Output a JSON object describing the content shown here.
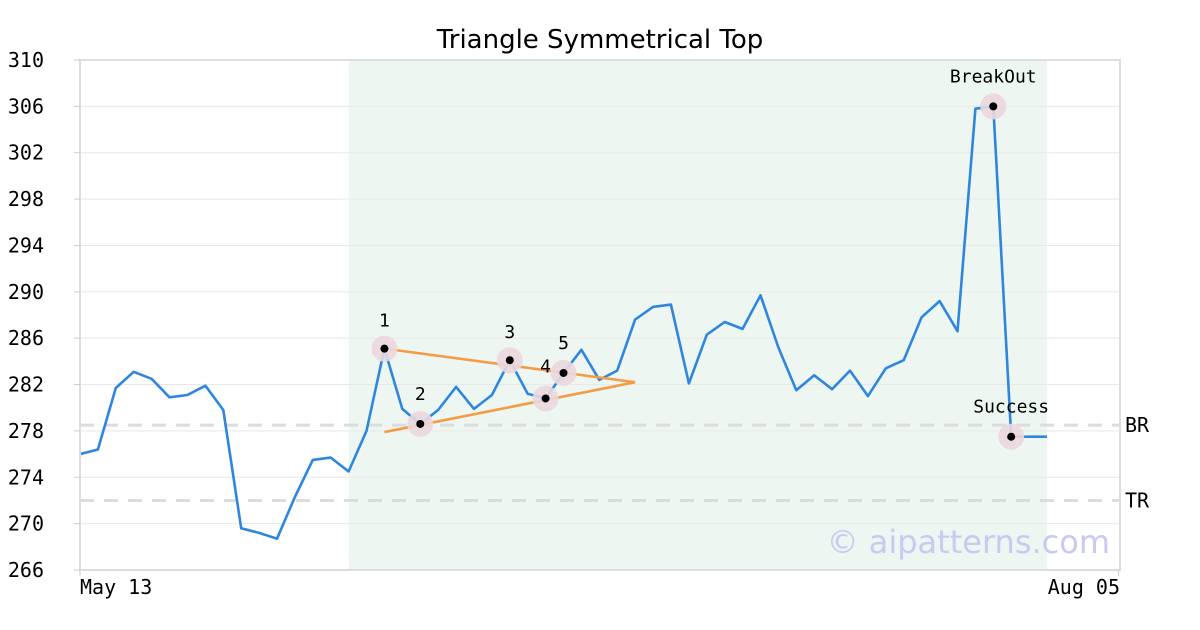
{
  "chart_data": {
    "type": "line",
    "title": "Triangle Symmetrical Top",
    "ylim": [
      266,
      310
    ],
    "yticks": [
      266,
      270,
      274,
      278,
      282,
      286,
      290,
      294,
      298,
      302,
      306,
      310
    ],
    "x_tick_labels": [
      {
        "index": 0,
        "label": "May 13"
      },
      {
        "index": 58,
        "label": "Aug 05"
      }
    ],
    "grid": "horizontal",
    "series": [
      {
        "color": "#2e86de",
        "values": [
          276.0,
          276.4,
          281.7,
          283.1,
          282.5,
          280.9,
          281.1,
          281.9,
          279.8,
          269.6,
          269.2,
          268.7,
          272.3,
          275.5,
          275.7,
          274.5,
          278.0,
          285.1,
          279.9,
          278.6,
          279.8,
          281.8,
          279.9,
          281.1,
          284.1,
          281.2,
          280.8,
          283.0,
          285.0,
          282.4,
          283.2,
          287.6,
          288.7,
          288.9,
          282.1,
          286.3,
          287.4,
          286.8,
          289.7,
          285.2,
          281.5,
          282.8,
          281.6,
          283.2,
          281.0,
          283.4,
          284.1,
          287.8,
          289.2,
          286.6,
          305.8,
          306.0,
          277.5,
          277.5,
          277.5
        ]
      }
    ],
    "pattern_region": {
      "from_index": 15,
      "to_index": 54,
      "color": "#eef6f2"
    },
    "pattern_points": [
      {
        "label": "1",
        "index": 17,
        "value": 285.1
      },
      {
        "label": "2",
        "index": 19,
        "value": 278.6
      },
      {
        "label": "3",
        "index": 24,
        "value": 284.1
      },
      {
        "label": "4",
        "index": 26,
        "value": 280.8
      },
      {
        "label": "5",
        "index": 27,
        "value": 283.0
      },
      {
        "label": "BreakOut",
        "index": 51,
        "value": 306.0
      },
      {
        "label": "Success",
        "index": 52,
        "value": 277.5
      }
    ],
    "triangle_lines": [
      {
        "from_index": 17,
        "from_value": 285.1,
        "to_index": 31,
        "to_value": 282.2
      },
      {
        "from_index": 17,
        "from_value": 277.9,
        "to_index": 31,
        "to_value": 282.2
      }
    ],
    "triangle_color": "#f39c45",
    "reference_lines": [
      {
        "label": "BR",
        "value": 278.5
      },
      {
        "label": "TR",
        "value": 272.0
      }
    ],
    "watermark": "© aipatterns.com"
  }
}
